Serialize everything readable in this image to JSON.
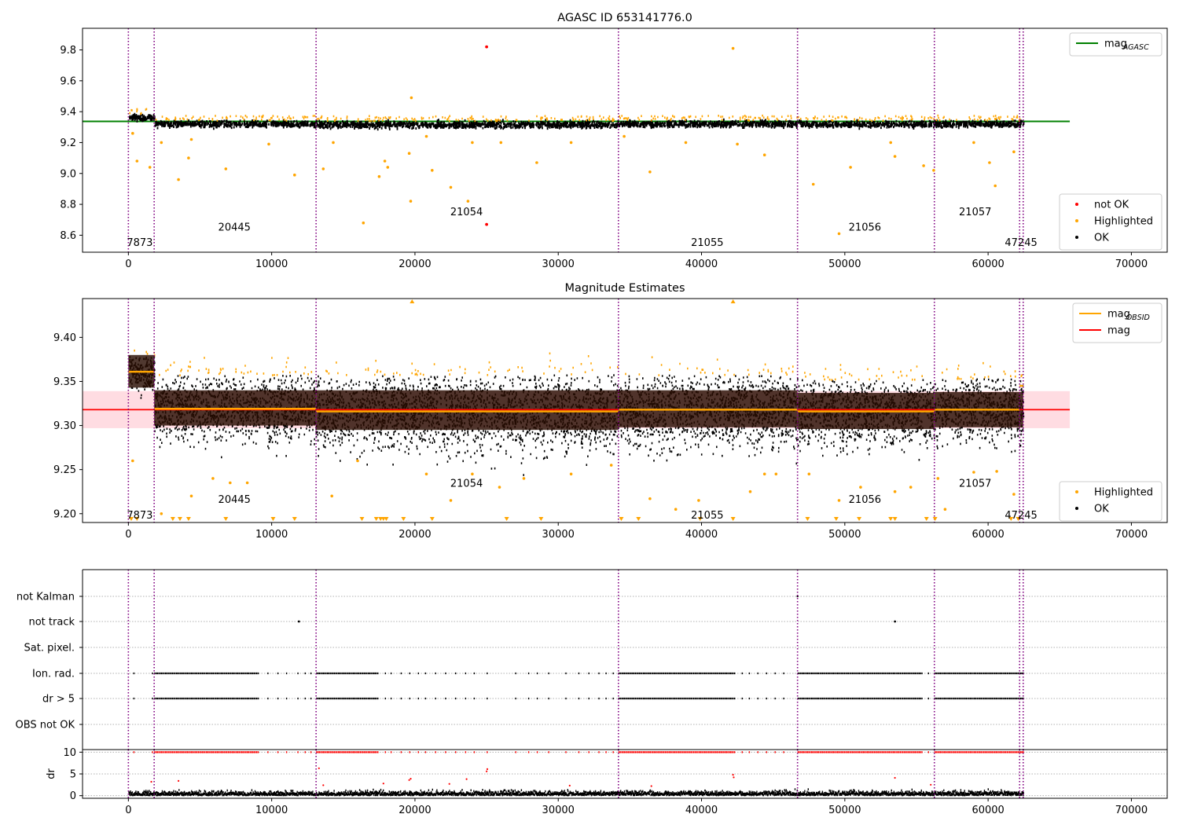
{
  "figure": {
    "background": "#ffffff"
  },
  "chart_data": [
    {
      "type": "scatter",
      "title": "AGASC ID 653141776.0",
      "xlim": [
        -3200,
        72500
      ],
      "ylim": [
        8.49,
        9.94
      ],
      "xticks": [
        0,
        10000,
        20000,
        30000,
        40000,
        50000,
        60000,
        70000
      ],
      "yticks": [
        8.6,
        8.8,
        9.0,
        9.2,
        9.4,
        9.6,
        9.8
      ],
      "ytick_labels": [
        "8.6",
        "8.8",
        "9.0",
        "9.2",
        "9.4",
        "9.6",
        "9.8"
      ],
      "obs_boundaries": [
        0,
        1800,
        13100,
        34200,
        46700,
        56250,
        62200,
        62450
      ],
      "obs_labels": [
        {
          "text": "7873",
          "x": 800,
          "y": 8.55
        },
        {
          "text": "20445",
          "x": 7400,
          "y": 8.65
        },
        {
          "text": "21054",
          "x": 23600,
          "y": 8.75
        },
        {
          "text": "21055",
          "x": 40400,
          "y": 8.55
        },
        {
          "text": "21056",
          "x": 51400,
          "y": 8.65
        },
        {
          "text": "21057",
          "x": 59100,
          "y": 8.75
        },
        {
          "text": "47245",
          "x": 62300,
          "y": 8.55
        }
      ],
      "reference_lines": [
        {
          "name": "mag",
          "subscript": "AGASC",
          "value": 9.337,
          "x_range": [
            -3200,
            65700
          ],
          "color": "#008000"
        }
      ],
      "ok_band": {
        "segments": [
          {
            "x": [
              0,
              1800
            ],
            "center": 9.36,
            "half_width": 0.025
          },
          {
            "x": [
              1800,
              13100
            ],
            "center": 9.32,
            "half_width": 0.022
          },
          {
            "x": [
              13100,
              34200
            ],
            "center": 9.315,
            "half_width": 0.024
          },
          {
            "x": [
              34200,
              46700
            ],
            "center": 9.32,
            "half_width": 0.022
          },
          {
            "x": [
              46700,
              56250
            ],
            "center": 9.318,
            "half_width": 0.022
          },
          {
            "x": [
              56250,
              62450
            ],
            "center": 9.32,
            "half_width": 0.022
          }
        ]
      },
      "legend_upper": {
        "placement": "upper-right",
        "entries": [
          {
            "label": "mag",
            "subscript": "AGASC",
            "color": "#008000"
          }
        ]
      },
      "legend_lower": {
        "placement": "lower-right",
        "entries": [
          {
            "label": "not OK",
            "color": "#ff0000"
          },
          {
            "label": "Highlighted",
            "color": "#ffa500"
          },
          {
            "label": "OK",
            "color": "#000000"
          }
        ]
      },
      "not_ok_points": [
        [
          25000,
          9.82
        ],
        [
          25000,
          8.67
        ]
      ],
      "highlighted_points": [
        [
          300,
          9.26
        ],
        [
          600,
          9.08
        ],
        [
          1500,
          9.04
        ],
        [
          2300,
          9.2
        ],
        [
          3500,
          8.96
        ],
        [
          4200,
          9.1
        ],
        [
          4400,
          9.22
        ],
        [
          6800,
          9.03
        ],
        [
          9800,
          9.19
        ],
        [
          11600,
          8.99
        ],
        [
          13600,
          9.03
        ],
        [
          14300,
          9.2
        ],
        [
          16400,
          8.68
        ],
        [
          17500,
          8.98
        ],
        [
          17900,
          9.08
        ],
        [
          18100,
          9.04
        ],
        [
          19600,
          9.13
        ],
        [
          19700,
          8.82
        ],
        [
          19750,
          9.49
        ],
        [
          20800,
          9.24
        ],
        [
          21200,
          9.02
        ],
        [
          22500,
          8.91
        ],
        [
          23700,
          8.82
        ],
        [
          24000,
          9.2
        ],
        [
          26000,
          9.2
        ],
        [
          28500,
          9.07
        ],
        [
          30900,
          9.2
        ],
        [
          34600,
          9.24
        ],
        [
          36400,
          9.01
        ],
        [
          38900,
          9.2
        ],
        [
          42200,
          9.81
        ],
        [
          42500,
          9.19
        ],
        [
          44400,
          9.12
        ],
        [
          47800,
          8.93
        ],
        [
          49600,
          8.61
        ],
        [
          50400,
          9.04
        ],
        [
          53200,
          9.2
        ],
        [
          53500,
          9.11
        ],
        [
          55500,
          9.05
        ],
        [
          56200,
          9.02
        ],
        [
          59000,
          9.2
        ],
        [
          60100,
          9.07
        ],
        [
          60500,
          8.92
        ],
        [
          61800,
          9.14
        ]
      ],
      "highlight_threshold_above": 0.055,
      "highlight_threshold_below": 0.035
    },
    {
      "type": "scatter",
      "title": "Magnitude Estimates",
      "xlim": [
        -3200,
        72500
      ],
      "ylim": [
        9.19,
        9.444
      ],
      "xticks": [
        0,
        10000,
        20000,
        30000,
        40000,
        50000,
        60000,
        70000
      ],
      "yticks": [
        9.2,
        9.25,
        9.3,
        9.35,
        9.4
      ],
      "ytick_labels": [
        "9.20",
        "9.25",
        "9.30",
        "9.35",
        "9.40"
      ],
      "obs_boundaries": [
        0,
        1800,
        13100,
        34200,
        46700,
        56250,
        62200,
        62450
      ],
      "obs_labels": [
        {
          "text": "7873",
          "x": 800,
          "y": 9.198
        },
        {
          "text": "20445",
          "x": 7400,
          "y": 9.216
        },
        {
          "text": "21054",
          "x": 23600,
          "y": 9.234
        },
        {
          "text": "21055",
          "x": 40400,
          "y": 9.198
        },
        {
          "text": "21056",
          "x": 51400,
          "y": 9.216
        },
        {
          "text": "21057",
          "x": 59100,
          "y": 9.234
        },
        {
          "text": "47245",
          "x": 62300,
          "y": 9.198
        }
      ],
      "mag_line": {
        "label": "mag",
        "value": 9.318,
        "x_range": [
          -3200,
          65700
        ],
        "color": "#ff0000",
        "band": [
          9.297,
          9.339
        ],
        "band_color": "#ffc0cb"
      },
      "obsid_segments": {
        "label": "mag",
        "subscript": "OBSID",
        "color": "#ffa500",
        "segments": [
          {
            "x": [
              0,
              1800
            ],
            "value": 9.361
          },
          {
            "x": [
              1800,
              13100
            ],
            "value": 9.319
          },
          {
            "x": [
              13100,
              34200
            ],
            "value": 9.316
          },
          {
            "x": [
              34200,
              46700
            ],
            "value": 9.318
          },
          {
            "x": [
              46700,
              56250
            ],
            "value": 9.316
          },
          {
            "x": [
              56250,
              62200
            ],
            "value": 9.318
          },
          {
            "x": [
              62200,
              62450
            ],
            "value": 9.345
          }
        ]
      },
      "data_segments": [
        {
          "x": [
            0,
            1800
          ],
          "center": 9.36,
          "spread": 0.018,
          "band": [
            9.343,
            9.38
          ]
        },
        {
          "x": [
            1800,
            13100
          ],
          "center": 9.32,
          "spread": 0.035,
          "band": [
            9.3,
            9.34
          ]
        },
        {
          "x": [
            13100,
            34200
          ],
          "center": 9.315,
          "spread": 0.04,
          "band": [
            9.295,
            9.34
          ]
        },
        {
          "x": [
            34200,
            46700
          ],
          "center": 9.318,
          "spread": 0.037,
          "band": [
            9.298,
            9.34
          ]
        },
        {
          "x": [
            46700,
            56250
          ],
          "center": 9.315,
          "spread": 0.035,
          "band": [
            9.296,
            9.337
          ]
        },
        {
          "x": [
            56250,
            62450
          ],
          "center": 9.318,
          "spread": 0.033,
          "band": [
            9.298,
            9.338
          ]
        }
      ],
      "dense_band_color": "#2a0e03",
      "legend_upper": {
        "placement": "upper-right",
        "entries": [
          {
            "label": "mag",
            "subscript": "OBSID",
            "color": "#ffa500"
          },
          {
            "label": "mag",
            "color": "#ff0000"
          }
        ]
      },
      "legend_lower": {
        "placement": "lower-right",
        "entries": [
          {
            "label": "Highlighted",
            "color": "#ffa500"
          },
          {
            "label": "OK",
            "color": "#000000"
          }
        ]
      },
      "outliers_low": [
        [
          300,
          9.26
        ],
        [
          2300,
          9.2
        ],
        [
          4400,
          9.22
        ],
        [
          5900,
          9.24
        ],
        [
          7100,
          9.235
        ],
        [
          8300,
          9.235
        ],
        [
          14200,
          9.22
        ],
        [
          16000,
          9.26
        ],
        [
          20800,
          9.245
        ],
        [
          22500,
          9.215
        ],
        [
          24000,
          9.245
        ],
        [
          25900,
          9.23
        ],
        [
          27600,
          9.24
        ],
        [
          30900,
          9.245
        ],
        [
          33700,
          9.255
        ],
        [
          36400,
          9.217
        ],
        [
          38200,
          9.205
        ],
        [
          39800,
          9.215
        ],
        [
          43400,
          9.225
        ],
        [
          44400,
          9.245
        ],
        [
          45200,
          9.245
        ],
        [
          47500,
          9.245
        ],
        [
          49600,
          9.215
        ],
        [
          51100,
          9.23
        ],
        [
          53500,
          9.225
        ],
        [
          54600,
          9.23
        ],
        [
          56500,
          9.24
        ],
        [
          57000,
          9.205
        ],
        [
          59000,
          9.247
        ],
        [
          60600,
          9.248
        ],
        [
          61800,
          9.222
        ]
      ],
      "clipped_low_x": [
        200,
        600,
        3100,
        3600,
        4200,
        6800,
        10100,
        11600,
        16300,
        17300,
        17600,
        17800,
        18000,
        19200,
        21200,
        26400,
        28800,
        34400,
        35600,
        39900,
        42200,
        47400,
        49400,
        51000,
        53200,
        53500,
        55700,
        56300,
        61600,
        62100
      ],
      "clipped_high_x": [
        19800,
        42200
      ]
    },
    {
      "type": "scatter",
      "title": "",
      "xlim": [
        -3200,
        72500
      ],
      "category_ticks": [
        "not Kalman",
        "not track",
        "Sat. pixel.",
        "Ion. rad.",
        "dr > 5",
        "OBS not OK"
      ],
      "xticks": [
        0,
        10000,
        20000,
        30000,
        40000,
        50000,
        60000,
        70000
      ],
      "obs_boundaries": [
        0,
        1800,
        13100,
        34200,
        46700,
        56250,
        62200,
        62450
      ],
      "flag_dense_ranges": [
        [
          1800,
          9100
        ],
        [
          13100,
          17400
        ],
        [
          34200,
          42300
        ],
        [
          46700,
          55400
        ],
        [
          56250,
          62450
        ]
      ],
      "flag_sparse_x": [
        350,
        1650,
        9700,
        10400,
        11000,
        11800,
        12300,
        12700,
        17900,
        18300,
        19000,
        19600,
        20200,
        20700,
        21400,
        22100,
        22800,
        23500,
        24100,
        25000,
        27000,
        27900,
        28500,
        29300,
        30500,
        31400,
        32100,
        32800,
        33300,
        33800,
        42800,
        43300,
        43900,
        44500,
        45100,
        45700,
        55800
      ],
      "not_track_points": [
        [
          11900,
          "not track"
        ],
        [
          53500,
          "not track"
        ]
      ],
      "not_kalman_points": [
        [
          46700,
          "not Kalman"
        ]
      ]
    },
    {
      "type": "scatter",
      "title": "",
      "ylabel": "dr",
      "xlim": [
        -3200,
        72500
      ],
      "ylim": [
        -0.6,
        10.6
      ],
      "yticks": [
        0,
        5,
        10
      ],
      "ytick_labels": [
        "0",
        "5",
        "10"
      ],
      "xticks": [
        0,
        10000,
        20000,
        30000,
        40000,
        50000,
        60000,
        70000
      ],
      "xtick_labels": [
        "0",
        "10000",
        "20000",
        "30000",
        "40000",
        "50000",
        "60000",
        "70000"
      ],
      "obs_boundaries": [
        0,
        1800,
        13100,
        34200,
        46700,
        56250,
        62200,
        62450
      ],
      "clipped_value": 10,
      "scatter_mid": [
        [
          1600,
          3.2
        ],
        [
          3500,
          3.4
        ],
        [
          13300,
          6.3
        ],
        [
          13600,
          2.4
        ],
        [
          17800,
          2.8
        ],
        [
          19600,
          3.6
        ],
        [
          19700,
          3.9
        ],
        [
          22400,
          2.7
        ],
        [
          23600,
          3.8
        ],
        [
          25000,
          5.6
        ],
        [
          25050,
          6.1
        ],
        [
          30800,
          2.3
        ],
        [
          36500,
          2.2
        ],
        [
          42200,
          4.8
        ],
        [
          42250,
          4.2
        ],
        [
          53500,
          4.1
        ],
        [
          56000,
          2.5
        ]
      ],
      "dense_x_range": [
        0,
        62450
      ]
    }
  ],
  "legend_entry_labels": {
    "mag_agasc": "mag",
    "mag_agasc_sub": "AGASC",
    "mag_obsid": "mag",
    "mag_obsid_sub": "OBSID",
    "mag": "mag",
    "not_ok": "not OK",
    "highlighted": "Highlighted",
    "ok": "OK"
  }
}
